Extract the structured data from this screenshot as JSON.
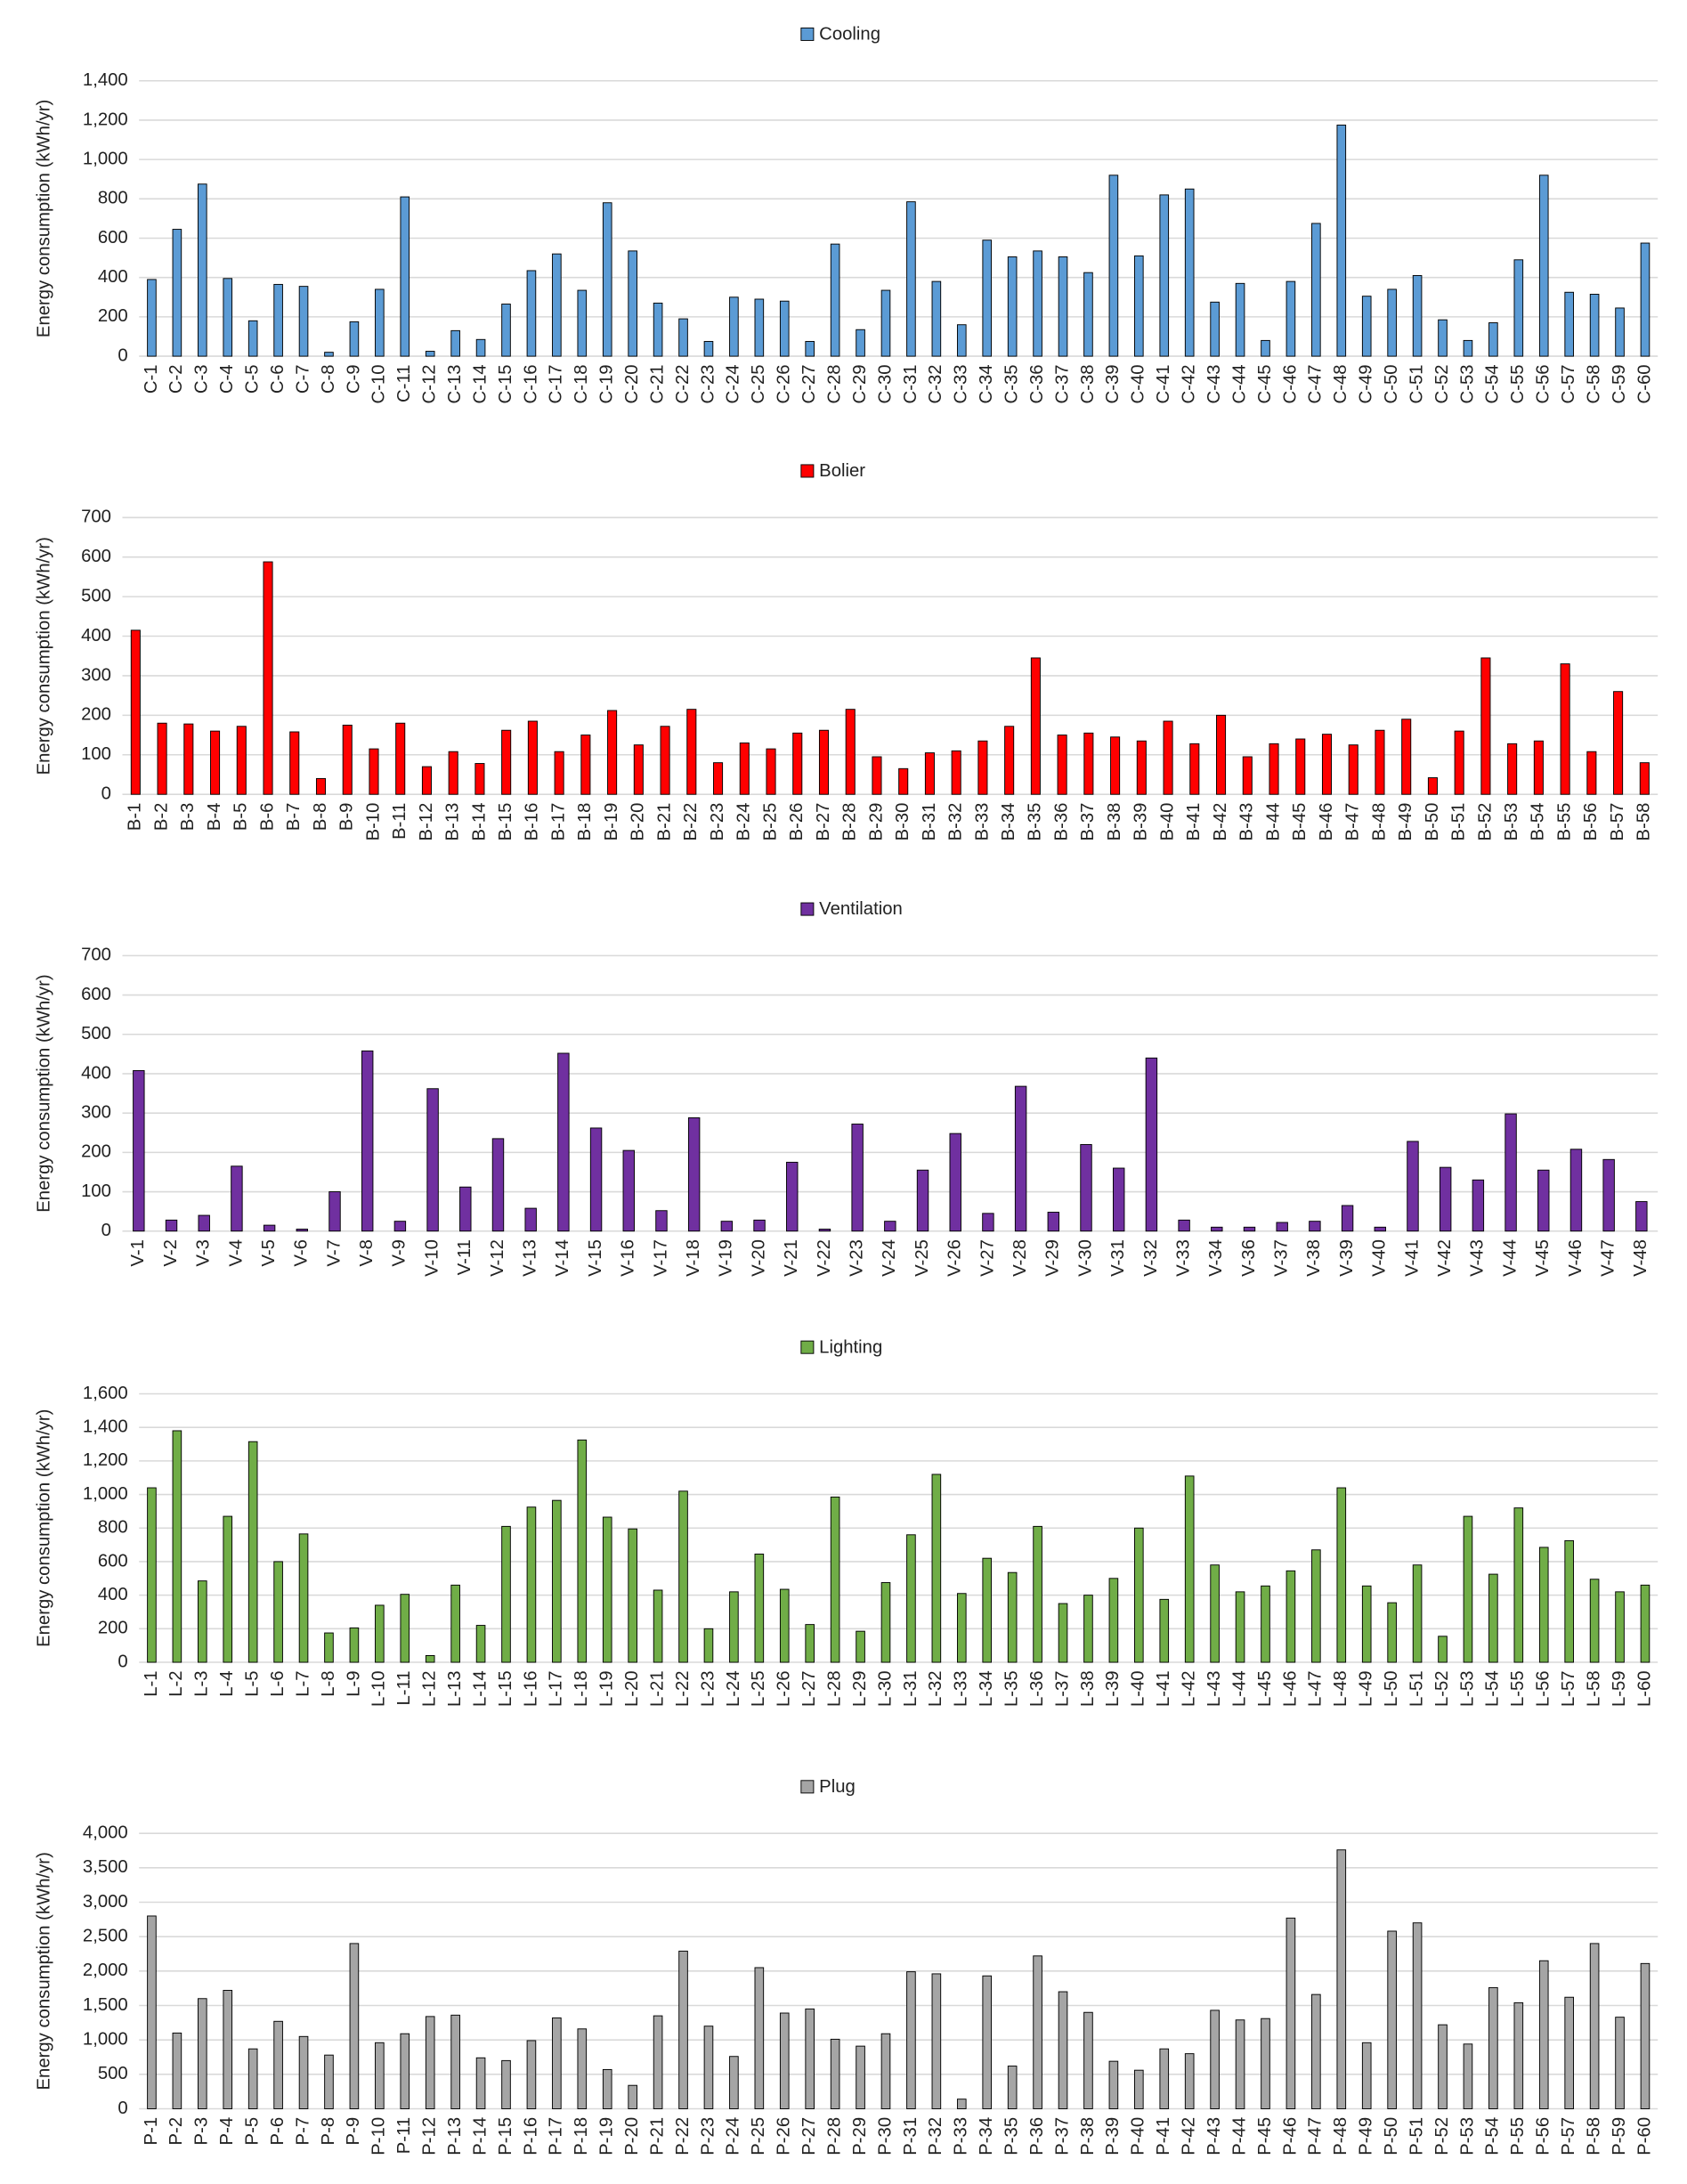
{
  "chart_data": [
    {
      "type": "bar",
      "y_label": "Energy consumption (kWh/yr)",
      "categories": [
        "C-1",
        "C-2",
        "C-3",
        "C-4",
        "C-5",
        "C-6",
        "C-7",
        "C-8",
        "C-9",
        "C-10",
        "C-11",
        "C-12",
        "C-13",
        "C-14",
        "C-15",
        "C-16",
        "C-17",
        "C-18",
        "C-19",
        "C-20",
        "C-21",
        "C-22",
        "C-23",
        "C-24",
        "C-25",
        "C-26",
        "C-27",
        "C-28",
        "C-29",
        "C-30",
        "C-31",
        "C-32",
        "C-33",
        "C-34",
        "C-35",
        "C-36",
        "C-37",
        "C-38",
        "C-39",
        "C-40",
        "C-41",
        "C-42",
        "C-43",
        "C-44",
        "C-45",
        "C-46",
        "C-47",
        "C-48",
        "C-49",
        "C-50",
        "C-51",
        "C-52",
        "C-53",
        "C-54",
        "C-55",
        "C-56",
        "C-57",
        "C-58",
        "C-59",
        "C-60"
      ],
      "series": [
        {
          "name": "Cooling",
          "color": "#5b9bd5",
          "values": [
            390,
            645,
            875,
            395,
            180,
            365,
            355,
            20,
            175,
            340,
            810,
            25,
            130,
            85,
            265,
            435,
            520,
            335,
            780,
            535,
            270,
            190,
            75,
            300,
            290,
            280,
            75,
            570,
            135,
            335,
            785,
            380,
            160,
            590,
            505,
            535,
            505,
            425,
            920,
            510,
            820,
            850,
            275,
            370,
            80,
            380,
            675,
            1175,
            305,
            340,
            410,
            185,
            80,
            170,
            490,
            920,
            325,
            315,
            245,
            575
          ]
        }
      ],
      "ylim": [
        0,
        1400
      ],
      "yticks": [
        0,
        200,
        400,
        600,
        800,
        {
          "value": 1000,
          "label": "1,000"
        },
        {
          "value": 1200,
          "label": "1,200"
        },
        {
          "value": 1400,
          "label": "1,400"
        }
      ],
      "grid": true
    },
    {
      "type": "bar",
      "y_label": "Energy consumption (kWh/yr)",
      "categories": [
        "B-1",
        "B-2",
        "B-3",
        "B-4",
        "B-5",
        "B-6",
        "B-7",
        "B-8",
        "B-9",
        "B-10",
        "B-11",
        "B-12",
        "B-13",
        "B-14",
        "B-15",
        "B-16",
        "B-17",
        "B-18",
        "B-19",
        "B-20",
        "B-21",
        "B-22",
        "B-23",
        "B-24",
        "B-25",
        "B-26",
        "B-27",
        "B-28",
        "B-29",
        "B-30",
        "B-31",
        "B-32",
        "B-33",
        "B-34",
        "B-35",
        "B-36",
        "B-37",
        "B-38",
        "B-39",
        "B-40",
        "B-41",
        "B-42",
        "B-43",
        "B-44",
        "B-45",
        "B-46",
        "B-47",
        "B-48",
        "B-49",
        "B-50",
        "B-51",
        "B-52",
        "B-53",
        "B-54",
        "B-55",
        "B-56",
        "B-57",
        "B-58"
      ],
      "series": [
        {
          "name": "Bolier",
          "color": "#ff0000",
          "values": [
            415,
            180,
            178,
            160,
            172,
            588,
            158,
            40,
            175,
            115,
            180,
            70,
            108,
            78,
            162,
            185,
            108,
            150,
            212,
            125,
            172,
            215,
            80,
            130,
            115,
            155,
            162,
            215,
            95,
            65,
            105,
            110,
            135,
            172,
            345,
            150,
            155,
            145,
            135,
            185,
            128,
            200,
            95,
            128,
            140,
            152,
            125,
            162,
            190,
            42,
            160,
            345,
            128,
            135,
            330,
            108,
            260,
            80
          ]
        }
      ],
      "ylim": [
        0,
        700
      ],
      "yticks": [
        0,
        100,
        200,
        300,
        400,
        500,
        600,
        700
      ],
      "grid": true
    },
    {
      "type": "bar",
      "y_label": "Energy consumption (kWh/yr)",
      "categories": [
        "V-1",
        "V-2",
        "V-3",
        "V-4",
        "V-5",
        "V-6",
        "V-7",
        "V-8",
        "V-9",
        "V-10",
        "V-11",
        "V-12",
        "V-13",
        "V-14",
        "V-15",
        "V-16",
        "V-17",
        "V-18",
        "V-19",
        "V-20",
        "V-21",
        "V-22",
        "V-23",
        "V-24",
        "V-25",
        "V-26",
        "V-27",
        "V-28",
        "V-29",
        "V-30",
        "V-31",
        "V-32",
        "V-33",
        "V-34",
        "V-36",
        "V-37",
        "V-38",
        "V-39",
        "V-40",
        "V-41",
        "V-42",
        "V-43",
        "V-44",
        "V-45",
        "V-46",
        "V-47",
        "V-48"
      ],
      "series": [
        {
          "name": "Ventilation",
          "color": "#7030a0",
          "values": [
            408,
            28,
            40,
            165,
            15,
            5,
            100,
            458,
            25,
            362,
            112,
            235,
            58,
            452,
            262,
            205,
            52,
            288,
            25,
            28,
            175,
            5,
            272,
            25,
            155,
            248,
            45,
            368,
            48,
            220,
            160,
            440,
            28,
            10,
            10,
            22,
            25,
            65,
            10,
            228,
            162,
            130,
            298,
            155,
            208,
            182,
            75
          ]
        }
      ],
      "ylim": [
        0,
        700
      ],
      "yticks": [
        0,
        100,
        200,
        300,
        400,
        500,
        600,
        700
      ],
      "grid": true
    },
    {
      "type": "bar",
      "y_label": "Energy consumption (kWh/yr)",
      "categories": [
        "L-1",
        "L-2",
        "L-3",
        "L-4",
        "L-5",
        "L-6",
        "L-7",
        "L-8",
        "L-9",
        "L-10",
        "L-11",
        "L-12",
        "L-13",
        "L-14",
        "L-15",
        "L-16",
        "L-17",
        "L-18",
        "L-19",
        "L-20",
        "L-21",
        "L-22",
        "L-23",
        "L-24",
        "L-25",
        "L-26",
        "L-27",
        "L-28",
        "L-29",
        "L-30",
        "L-31",
        "L-32",
        "L-33",
        "L-34",
        "L-35",
        "L-36",
        "L-37",
        "L-38",
        "L-39",
        "L-40",
        "L-41",
        "L-42",
        "L-43",
        "L-44",
        "L-45",
        "L-46",
        "L-47",
        "L-48",
        "L-49",
        "L-50",
        "L-51",
        "L-52",
        "L-53",
        "L-54",
        "L-55",
        "L-56",
        "L-57",
        "L-58",
        "L-59",
        "L-60"
      ],
      "series": [
        {
          "name": "Lighting",
          "color": "#70ad47",
          "values": [
            1040,
            1380,
            485,
            870,
            1315,
            600,
            765,
            175,
            205,
            340,
            405,
            40,
            460,
            220,
            810,
            925,
            965,
            1325,
            865,
            795,
            430,
            1020,
            200,
            420,
            645,
            435,
            225,
            985,
            185,
            475,
            760,
            1120,
            410,
            620,
            535,
            810,
            350,
            400,
            500,
            800,
            375,
            1110,
            580,
            420,
            455,
            545,
            670,
            1040,
            455,
            355,
            580,
            155,
            870,
            525,
            920,
            685,
            725,
            495,
            420,
            460
          ]
        }
      ],
      "ylim": [
        0,
        1600
      ],
      "yticks": [
        0,
        200,
        400,
        600,
        800,
        {
          "value": 1000,
          "label": "1,000"
        },
        {
          "value": 1200,
          "label": "1,200"
        },
        {
          "value": 1400,
          "label": "1,400"
        },
        {
          "value": 1600,
          "label": "1,600"
        }
      ],
      "grid": true
    },
    {
      "type": "bar",
      "y_label": "Energy consumption (kWh/yr)",
      "categories": [
        "P-1",
        "P-2",
        "P-3",
        "P-4",
        "P-5",
        "P-6",
        "P-7",
        "P-8",
        "P-9",
        "P-10",
        "P-11",
        "P-12",
        "P-13",
        "P-14",
        "P-15",
        "P-16",
        "P-17",
        "P-18",
        "P-19",
        "P-20",
        "P-21",
        "P-22",
        "P-23",
        "P-24",
        "P-25",
        "P-26",
        "P-27",
        "P-28",
        "P-29",
        "P-30",
        "P-31",
        "P-32",
        "P-33",
        "P-34",
        "P-35",
        "P-36",
        "P-37",
        "P-38",
        "P-39",
        "P-40",
        "P-41",
        "P-42",
        "P-43",
        "P-44",
        "P-45",
        "P-46",
        "P-47",
        "P-48",
        "P-49",
        "P-50",
        "P-51",
        "P-52",
        "P-53",
        "P-54",
        "P-55",
        "P-56",
        "P-57",
        "P-58",
        "P-59",
        "P-60"
      ],
      "series": [
        {
          "name": "Plug",
          "color": "#a5a5a5",
          "values": [
            2800,
            1100,
            1600,
            1720,
            870,
            1270,
            1050,
            780,
            2400,
            960,
            1090,
            1340,
            1360,
            740,
            700,
            990,
            1320,
            1160,
            570,
            340,
            1350,
            2290,
            1200,
            760,
            2050,
            1390,
            1450,
            1010,
            910,
            1090,
            1990,
            1960,
            140,
            1930,
            620,
            2220,
            1700,
            1400,
            690,
            560,
            870,
            800,
            1430,
            1290,
            1310,
            2770,
            1660,
            3760,
            960,
            2580,
            2700,
            1220,
            940,
            1760,
            1540,
            2150,
            1620,
            2400,
            1330,
            2110
          ]
        }
      ],
      "ylim": [
        0,
        4000
      ],
      "yticks": [
        0,
        {
          "value": 500,
          "label": "500"
        },
        {
          "value": 1000,
          "label": "1,000"
        },
        {
          "value": 1500,
          "label": "1,500"
        },
        {
          "value": 2000,
          "label": "2,000"
        },
        {
          "value": 2500,
          "label": "2,500"
        },
        {
          "value": 3000,
          "label": "3,000"
        },
        {
          "value": 3500,
          "label": "3,500"
        },
        {
          "value": 4000,
          "label": "4,000"
        }
      ],
      "grid": true
    }
  ]
}
